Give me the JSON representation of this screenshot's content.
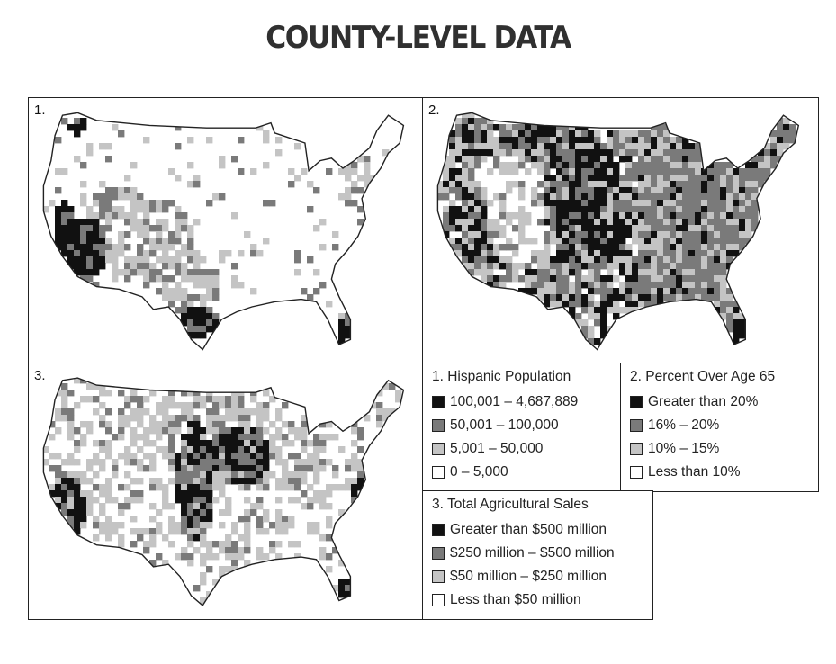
{
  "title": "COUNTY-LEVEL DATA",
  "colors": {
    "black": "#111111",
    "dark_gray": "#7a7a7a",
    "light_gray": "#c4c4c4",
    "white": "#ffffff",
    "outline": "#222222"
  },
  "maps": [
    {
      "number": "1.",
      "variable": "Hispanic Population",
      "pattern": "hispanic"
    },
    {
      "number": "2.",
      "variable": "Percent Over Age 65",
      "pattern": "elderly"
    },
    {
      "number": "3.",
      "variable": "Total Agricultural Sales",
      "pattern": "agriculture"
    }
  ],
  "legends": {
    "hispanic": {
      "title": "1. Hispanic Population",
      "items": [
        {
          "label": "100,001 – 4,687,889",
          "color": "#111111"
        },
        {
          "label": "50,001 – 100,000",
          "color": "#7a7a7a"
        },
        {
          "label": "5,001 – 50,000",
          "color": "#c4c4c4"
        },
        {
          "label": "0 – 5,000",
          "color": "#ffffff"
        }
      ]
    },
    "elderly": {
      "title": "2. Percent Over Age 65",
      "items": [
        {
          "label": "Greater than 20%",
          "color": "#111111"
        },
        {
          "label": "16% – 20%",
          "color": "#7a7a7a"
        },
        {
          "label": "10% – 15%",
          "color": "#c4c4c4"
        },
        {
          "label": "Less than 10%",
          "color": "#ffffff"
        }
      ]
    },
    "agriculture": {
      "title": "3. Total Agricultural Sales",
      "items": [
        {
          "label": "Greater than $500 million",
          "color": "#111111"
        },
        {
          "label": "$250 million – $500 million",
          "color": "#7a7a7a"
        },
        {
          "label": "$50 million – $250 million",
          "color": "#c4c4c4"
        },
        {
          "label": "Less than $50 million",
          "color": "#ffffff"
        }
      ]
    }
  }
}
